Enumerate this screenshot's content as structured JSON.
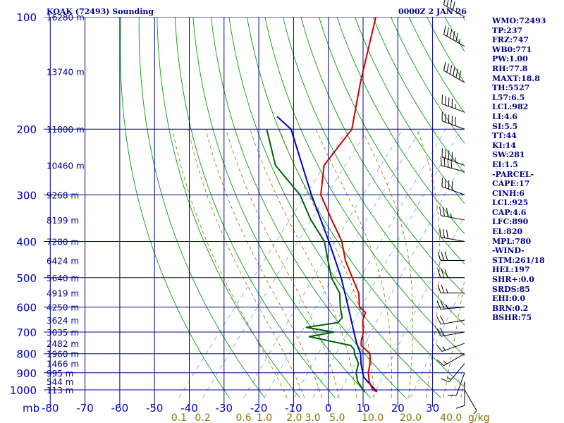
{
  "chart_data": {
    "type": "skew-t",
    "title": "KOAK (72493) Sounding",
    "valid_time": "0000Z  2 JAN 26",
    "pressure_unit_label": "mb",
    "mixing_ratio_unit_label": "g/kg",
    "pressure_levels": [
      100,
      200,
      300,
      400,
      500,
      600,
      700,
      800,
      900,
      1000
    ],
    "temperature_ticks": [
      -80,
      -70,
      -60,
      -50,
      -40,
      -30,
      -20,
      -10,
      0,
      10,
      20,
      30
    ],
    "height_labels": [
      {
        "label": "16280 m",
        "p": 100
      },
      {
        "label": "13740 m",
        "p": 140
      },
      {
        "label": "11800 m",
        "p": 200
      },
      {
        "label": "10460 m",
        "p": 250
      },
      {
        "label": "9268 m",
        "p": 300
      },
      {
        "label": "8199 m",
        "p": 350
      },
      {
        "label": "7280 m",
        "p": 400
      },
      {
        "label": "6424 m",
        "p": 450
      },
      {
        "label": "5640 m",
        "p": 500
      },
      {
        "label": "4919 m",
        "p": 550
      },
      {
        "label": "4250 m",
        "p": 600
      },
      {
        "label": "3624 m",
        "p": 650
      },
      {
        "label": "3035 m",
        "p": 700
      },
      {
        "label": "2482 m",
        "p": 750
      },
      {
        "label": "1960 m",
        "p": 800
      },
      {
        "label": "1466 m",
        "p": 850
      },
      {
        "label": "995 m",
        "p": 900
      },
      {
        "label": "544 m",
        "p": 950
      },
      {
        "label": "113 m",
        "p": 1000
      }
    ],
    "mixing_ratio_labels": [
      "0.1",
      "0.2",
      "0.6",
      "1.0",
      "2.0",
      "3.0",
      "5.0",
      "10.0",
      "20.0",
      "40.0"
    ],
    "temperature_profile": [
      {
        "p": 1012,
        "t": 14.5
      },
      {
        "p": 1000,
        "t": 12.8
      },
      {
        "p": 950,
        "t": 9.8
      },
      {
        "p": 900,
        "t": 7.5
      },
      {
        "p": 850,
        "t": 5.8
      },
      {
        "p": 800,
        "t": 3.5
      },
      {
        "p": 760,
        "t": -1.0
      },
      {
        "p": 740,
        "t": -2.0
      },
      {
        "p": 700,
        "t": -3.5
      },
      {
        "p": 650,
        "t": -6.5
      },
      {
        "p": 620,
        "t": -7.5
      },
      {
        "p": 600,
        "t": -10.5
      },
      {
        "p": 550,
        "t": -14.0
      },
      {
        "p": 500,
        "t": -19.5
      },
      {
        "p": 450,
        "t": -25.5
      },
      {
        "p": 400,
        "t": -31.0
      },
      {
        "p": 350,
        "t": -39.0
      },
      {
        "p": 300,
        "t": -48.0
      },
      {
        "p": 250,
        "t": -54.0
      },
      {
        "p": 200,
        "t": -54.5
      },
      {
        "p": 150,
        "t": -63.0
      },
      {
        "p": 100,
        "t": -74.0
      }
    ],
    "dewpoint_profile": [
      {
        "p": 1012,
        "t": 11.0
      },
      {
        "p": 1000,
        "t": 10.0
      },
      {
        "p": 950,
        "t": 6.5
      },
      {
        "p": 900,
        "t": 4.0
      },
      {
        "p": 850,
        "t": 2.5
      },
      {
        "p": 800,
        "t": -1.0
      },
      {
        "p": 780,
        "t": -2.0
      },
      {
        "p": 760,
        "t": -4.0
      },
      {
        "p": 720,
        "t": -18.0
      },
      {
        "p": 700,
        "t": -12.0
      },
      {
        "p": 680,
        "t": -21.0
      },
      {
        "p": 660,
        "t": -13.0
      },
      {
        "p": 640,
        "t": -13.0
      },
      {
        "p": 600,
        "t": -16.0
      },
      {
        "p": 550,
        "t": -19.5
      },
      {
        "p": 500,
        "t": -25.5
      },
      {
        "p": 450,
        "t": -30.5
      },
      {
        "p": 400,
        "t": -36.0
      },
      {
        "p": 350,
        "t": -45.0
      },
      {
        "p": 300,
        "t": -54.0
      },
      {
        "p": 250,
        "t": -68.0
      },
      {
        "p": 200,
        "t": -79.0
      }
    ],
    "parcel_profile": [
      {
        "p": 1012,
        "t": 14.5
      },
      {
        "p": 925,
        "t": 7.2
      },
      {
        "p": 850,
        "t": 3.2
      },
      {
        "p": 800,
        "t": 0.8
      },
      {
        "p": 750,
        "t": -2.8
      },
      {
        "p": 700,
        "t": -6.2
      },
      {
        "p": 600,
        "t": -13.7
      },
      {
        "p": 500,
        "t": -22.7
      },
      {
        "p": 400,
        "t": -34.7
      },
      {
        "p": 300,
        "t": -50.7
      },
      {
        "p": 200,
        "t": -72.0
      },
      {
        "p": 185,
        "t": -79.0
      }
    ],
    "indices": [
      "WMO:72493",
      "TP:237",
      "FRZ:747",
      "WB0:771",
      "PW:1.00",
      "RH:77.8",
      "MAXT:18.8",
      "TH:5527",
      "L57:6.5",
      "LCL:982",
      "LI:4.6",
      "SI:5.5",
      "TT:44",
      "KI:14",
      "SW:281",
      "EI:1.5",
      "-PARCEL-",
      "CAPE:17",
      "CINH:6",
      "LCL:925",
      "CAP:4.6",
      "LFC:890",
      "EL:820",
      "MPL:780",
      "-WIND-",
      "STM:261/18",
      "HEL:197",
      "SHR+:0.0",
      "SRDS:85",
      "EHI:0.0",
      "BRN:0.2",
      "BSHR:75"
    ],
    "wind_barbs": [
      {
        "p": 100,
        "dir": 300,
        "kt": 45
      },
      {
        "p": 120,
        "dir": 300,
        "kt": 55
      },
      {
        "p": 150,
        "dir": 300,
        "kt": 60
      },
      {
        "p": 180,
        "dir": 290,
        "kt": 45
      },
      {
        "p": 200,
        "dir": 290,
        "kt": 50
      },
      {
        "p": 250,
        "dir": 290,
        "kt": 45
      },
      {
        "p": 260,
        "dir": 285,
        "kt": 40
      },
      {
        "p": 300,
        "dir": 290,
        "kt": 40
      },
      {
        "p": 350,
        "dir": 280,
        "kt": 35
      },
      {
        "p": 400,
        "dir": 280,
        "kt": 30
      },
      {
        "p": 450,
        "dir": 270,
        "kt": 30
      },
      {
        "p": 500,
        "dir": 270,
        "kt": 30
      },
      {
        "p": 550,
        "dir": 270,
        "kt": 25
      },
      {
        "p": 600,
        "dir": 265,
        "kt": 25
      },
      {
        "p": 650,
        "dir": 260,
        "kt": 20
      },
      {
        "p": 700,
        "dir": 260,
        "kt": 20
      },
      {
        "p": 750,
        "dir": 250,
        "kt": 15
      },
      {
        "p": 800,
        "dir": 240,
        "kt": 15
      },
      {
        "p": 850,
        "dir": 220,
        "kt": 15
      },
      {
        "p": 900,
        "dir": 200,
        "kt": 10
      },
      {
        "p": 950,
        "dir": 180,
        "kt": 10
      },
      {
        "p": 1000,
        "dir": 150,
        "kt": 5
      }
    ],
    "colors": {
      "isobars": "#00008b",
      "isotherms": "#00008b",
      "dry_adiabats": "#00a000",
      "moist_adiabats": "#8b7500",
      "mixing_ratio": "#6ea0e0",
      "temperature": "#cc0000",
      "dewpoint": "#006400",
      "parcel": "#0000cd",
      "labels": "#00008b"
    }
  }
}
